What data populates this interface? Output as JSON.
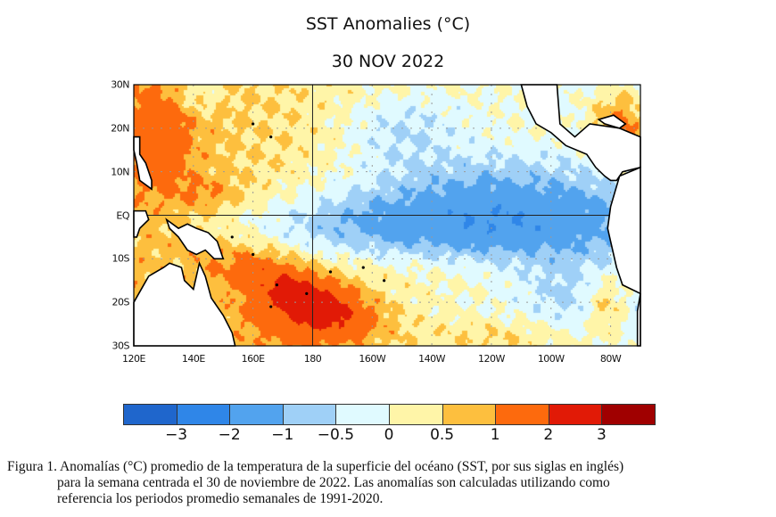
{
  "title": "SST Anomalies (°C)",
  "date": "30 NOV 2022",
  "chart_data": {
    "type": "heatmap",
    "title": "SST Anomalies (°C)",
    "subtitle": "30 NOV 2022",
    "lat_ticks": [
      "30N",
      "20N",
      "10N",
      "EQ",
      "10S",
      "20S",
      "30S"
    ],
    "lon_ticks": [
      "120E",
      "140E",
      "160E",
      "180",
      "160W",
      "140W",
      "120W",
      "100W",
      "80W"
    ],
    "lat_range": [
      -30,
      30
    ],
    "lon_range": [
      120,
      290
    ],
    "grid": "dotted every 10° lat / 20° lon; solid equator and 180",
    "colorbar": {
      "labels": [
        "−3",
        "−2",
        "−1",
        "−0.5",
        "0",
        "0.5",
        "1",
        "2",
        "3"
      ],
      "bounds": [
        -3,
        -2,
        -1,
        -0.5,
        0,
        0.5,
        1,
        2,
        3
      ],
      "colors": [
        "#1f66cc",
        "#2f86e8",
        "#52a3ee",
        "#9fd0f7",
        "#e0faff",
        "#fff5a8",
        "#fdbf3e",
        "#fd6a0d",
        "#e11a06",
        "#a00000"
      ]
    },
    "features": [
      {
        "region": "equatorial central-east Pacific",
        "anomaly": "negative (-0.5 to -2)"
      },
      {
        "region": "southwest Pacific 10S-30S, 150E-160W",
        "anomaly": "positive (1 to 3)"
      },
      {
        "region": "northwest Pacific 120E-150E",
        "anomaly": "positive (0.5 to 2)"
      },
      {
        "region": "Caribbean",
        "anomaly": "positive (1 to 2)"
      }
    ]
  },
  "caption": {
    "line1": "Figura 1. Anomalías (°C) promedio de la temperatura de la superficie del océano (SST, por sus siglas en inglés)",
    "line2": "para la semana centrada el 30 de noviembre de 2022. Las anomalías son calculadas utilizando como",
    "line3": "referencia los periodos promedio semanales de 1991-2020."
  }
}
